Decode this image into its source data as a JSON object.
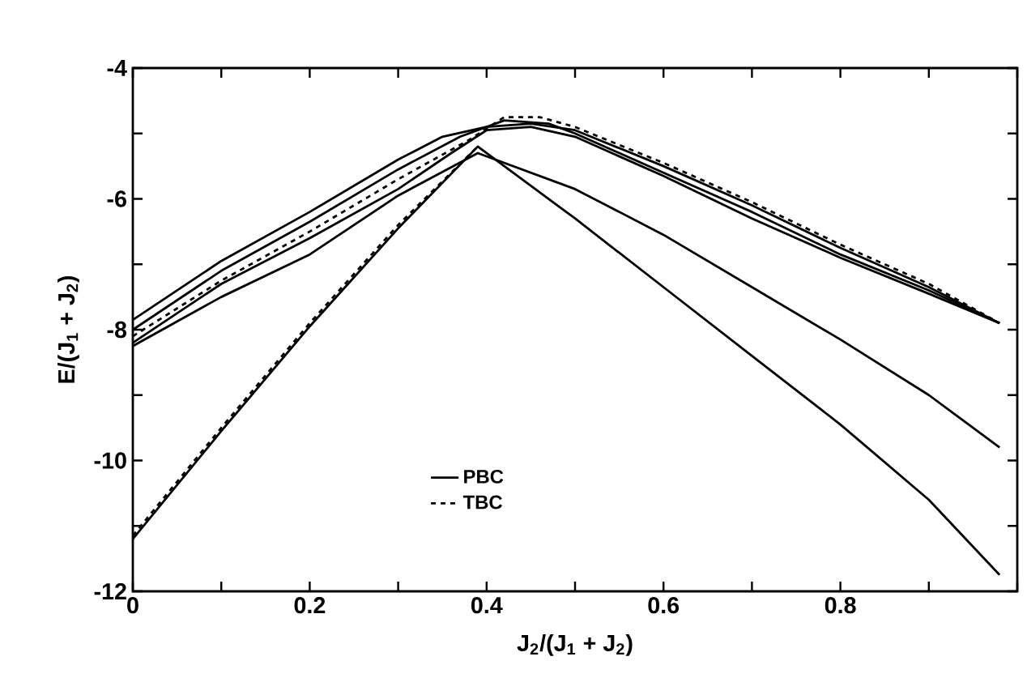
{
  "chart_data": {
    "type": "line",
    "xlabel": "J$_{2}$/(J$_{1}$ + J$_{2}$)",
    "ylabel": "E/(J$_{1}$ + J$_{2}$)",
    "xlim": [
      0,
      1
    ],
    "ylim": [
      -12,
      -4
    ],
    "xticks": [
      0,
      {
        "value": 0.1,
        "label": null
      },
      0.2,
      {
        "value": 0.3,
        "label": null
      },
      0.4,
      {
        "value": 0.5,
        "label": null
      },
      0.6,
      {
        "value": 0.7,
        "label": null
      },
      0.8,
      {
        "value": 0.9,
        "label": null
      },
      {
        "value": 1,
        "label": null
      }
    ],
    "yticks": [
      -12,
      {
        "value": -11,
        "label": null
      },
      -10,
      {
        "value": -9,
        "label": null
      },
      -8,
      {
        "value": -7,
        "label": null
      },
      -6,
      {
        "value": -5,
        "label": null
      },
      -4
    ],
    "legend": "bottom",
    "grid": false,
    "marker": "none",
    "series": [
      {
        "name": "PBC",
        "color": "#000000",
        "line_style": "solid",
        "x": [
          0,
          0.1,
          0.2,
          0.3,
          0.39,
          0.5,
          0.6,
          0.7,
          0.8,
          0.9,
          0.98
        ],
        "values": [
          -11.2,
          -9.55,
          -7.95,
          -6.45,
          -5.2,
          -6.3,
          -7.35,
          -8.4,
          -9.45,
          -10.6,
          -11.75
        ]
      },
      {
        "name": "TBC",
        "color": "#000000",
        "line_style": "dashed",
        "x": [
          0,
          0.1,
          0.2,
          0.3,
          0.39
        ],
        "values": [
          -11.15,
          -9.5,
          -7.9,
          -6.4,
          -5.2
        ]
      },
      {
        "color": "#000000",
        "line_style": "solid",
        "x": [
          0,
          0.1,
          0.2,
          0.3,
          0.39,
          0.5,
          0.6,
          0.7,
          0.8,
          0.9,
          0.98
        ],
        "values": [
          -8.25,
          -7.5,
          -6.85,
          -5.95,
          -5.3,
          -5.85,
          -6.55,
          -7.35,
          -8.15,
          -9.0,
          -9.8
        ]
      },
      {
        "color": "#000000",
        "line_style": "solid",
        "x": [
          0,
          0.1,
          0.2,
          0.3,
          0.35,
          0.4,
          0.45,
          0.5,
          0.6,
          0.7,
          0.8,
          0.9,
          0.98
        ],
        "values": [
          -7.85,
          -6.95,
          -6.2,
          -5.4,
          -5.05,
          -4.9,
          -4.85,
          -4.95,
          -5.5,
          -6.1,
          -6.75,
          -7.35,
          -7.9
        ]
      },
      {
        "color": "#000000",
        "line_style": "solid",
        "x": [
          0,
          0.1,
          0.2,
          0.3,
          0.37,
          0.42,
          0.47,
          0.5,
          0.6,
          0.7,
          0.8,
          0.9,
          0.98
        ],
        "values": [
          -8.0,
          -7.1,
          -6.35,
          -5.55,
          -5.05,
          -4.8,
          -4.85,
          -5.0,
          -5.6,
          -6.2,
          -6.85,
          -7.4,
          -7.9
        ]
      },
      {
        "color": "#000000",
        "line_style": "dashed",
        "x": [
          0,
          0.1,
          0.2,
          0.3,
          0.38,
          0.42,
          0.46,
          0.5,
          0.6,
          0.7,
          0.8,
          0.9,
          0.98
        ],
        "values": [
          -8.1,
          -7.25,
          -6.5,
          -5.7,
          -5.1,
          -4.75,
          -4.75,
          -4.9,
          -5.45,
          -6.05,
          -6.7,
          -7.3,
          -7.9
        ]
      },
      {
        "color": "#000000",
        "line_style": "solid",
        "x": [
          0,
          0.1,
          0.2,
          0.3,
          0.36,
          0.4,
          0.45,
          0.5,
          0.6,
          0.7,
          0.8,
          0.9,
          0.98
        ],
        "values": [
          -8.2,
          -7.3,
          -6.6,
          -5.85,
          -5.3,
          -4.95,
          -4.9,
          -5.05,
          -5.65,
          -6.3,
          -6.9,
          -7.45,
          -7.9
        ]
      }
    ]
  }
}
